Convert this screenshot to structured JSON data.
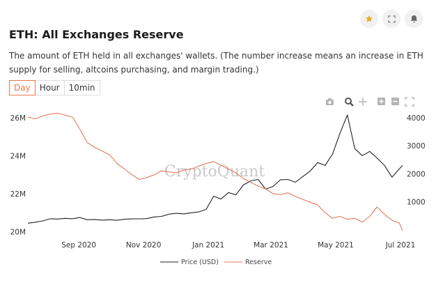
{
  "header": {
    "title": "ETH: All Exchanges Reserve",
    "description": "The amount of ETH held in all exchanges' wallets. (The number increase means an increase in ETH supply for selling, altcoins purchasing, and margin trading.)"
  },
  "actions": {
    "star_icon": "star-icon",
    "expand_icon": "expand-icon",
    "bell_icon": "bell-icon"
  },
  "colors": {
    "accent": "#e9774f",
    "price": "#222222",
    "reserve": "#e37a5c",
    "star": "#f0a81c"
  },
  "tabs": [
    {
      "label": "Day",
      "active": true
    },
    {
      "label": "Hour",
      "active": false
    },
    {
      "label": "10min",
      "active": false
    }
  ],
  "toolbar": [
    "camera-icon",
    "zoom-icon",
    "pan-icon",
    "zoom-in-icon",
    "zoom-out-icon",
    "autoscale-icon"
  ],
  "chart_data": {
    "type": "line",
    "title": "ETH: All Exchanges Reserve",
    "watermark": "CryptoQuant",
    "x": [
      "2020-07-15",
      "2020-07-22",
      "2020-07-29",
      "2020-08-05",
      "2020-08-12",
      "2020-08-19",
      "2020-08-26",
      "2020-09-02",
      "2020-09-09",
      "2020-09-16",
      "2020-09-23",
      "2020-09-30",
      "2020-10-07",
      "2020-10-14",
      "2020-10-21",
      "2020-10-28",
      "2020-11-04",
      "2020-11-11",
      "2020-11-18",
      "2020-11-25",
      "2020-12-02",
      "2020-12-09",
      "2020-12-16",
      "2020-12-23",
      "2020-12-30",
      "2021-01-06",
      "2021-01-13",
      "2021-01-20",
      "2021-01-27",
      "2021-02-03",
      "2021-02-10",
      "2021-02-17",
      "2021-02-24",
      "2021-03-03",
      "2021-03-10",
      "2021-03-17",
      "2021-03-24",
      "2021-03-31",
      "2021-04-07",
      "2021-04-14",
      "2021-04-21",
      "2021-04-28",
      "2021-05-05",
      "2021-05-12",
      "2021-05-19",
      "2021-05-26",
      "2021-06-02",
      "2021-06-09",
      "2021-06-16",
      "2021-06-23",
      "2021-06-30",
      "2021-07-03"
    ],
    "series": [
      {
        "name": "Price (USD)",
        "axis": "right",
        "values": [
          237,
          272,
          318,
          395,
          385,
          410,
          395,
          440,
          360,
          370,
          345,
          360,
          340,
          378,
          390,
          392,
          400,
          460,
          480,
          560,
          590,
          570,
          610,
          640,
          730,
          1200,
          1100,
          1330,
          1250,
          1600,
          1750,
          1800,
          1450,
          1550,
          1790,
          1800,
          1700,
          1900,
          2100,
          2400,
          2300,
          2700,
          3450,
          4100,
          2900,
          2650,
          2800,
          2560,
          2300,
          1880,
          2180,
          2300
        ]
      },
      {
        "name": "Reserve",
        "axis": "left",
        "values": [
          26.05,
          25.95,
          26.1,
          26.2,
          26.25,
          26.15,
          26.05,
          25.4,
          24.7,
          24.45,
          24.25,
          24.05,
          23.6,
          23.3,
          23.0,
          22.75,
          22.85,
          23.0,
          23.2,
          23.15,
          23.1,
          23.25,
          23.3,
          23.45,
          23.6,
          23.7,
          23.5,
          23.3,
          23.1,
          22.8,
          22.6,
          22.4,
          22.25,
          22.0,
          21.95,
          22.05,
          21.85,
          21.7,
          21.55,
          21.4,
          21.0,
          20.7,
          20.8,
          20.65,
          20.7,
          20.5,
          20.8,
          21.3,
          20.9,
          20.6,
          20.45,
          20.05
        ]
      }
    ],
    "x_ticks": [
      {
        "date": "2020-09-01",
        "label": "Sep 2020"
      },
      {
        "date": "2020-11-01",
        "label": "Nov 2020"
      },
      {
        "date": "2021-01-01",
        "label": "Jan 2021"
      },
      {
        "date": "2021-03-01",
        "label": "Mar 2021"
      },
      {
        "date": "2021-05-01",
        "label": "May 2021"
      },
      {
        "date": "2021-07-01",
        "label": "Jul 2021"
      }
    ],
    "y_left": {
      "label": "Reserve",
      "range": [
        19.9,
        26.45
      ],
      "ticks": [
        20,
        22,
        24,
        26
      ],
      "tick_labels": [
        "20M",
        "22M",
        "24M",
        "26M"
      ]
    },
    "y_right": {
      "label": "Price (USD)",
      "range": [
        -130,
        4300
      ],
      "ticks": [
        1000,
        2000,
        3000,
        4000
      ],
      "tick_labels": [
        "1000",
        "2000",
        "3000",
        "4000"
      ]
    },
    "legend": {
      "placement": "bottom-center",
      "entries": [
        "Price (USD)",
        "Reserve"
      ]
    },
    "grid": false
  }
}
